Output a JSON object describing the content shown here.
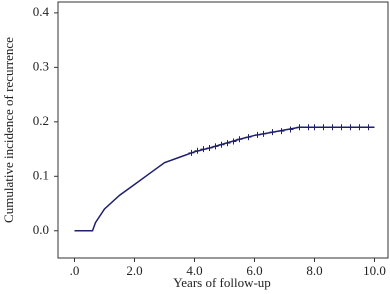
{
  "chart_data": {
    "type": "line",
    "x_label": "Years of follow-up",
    "y_label": "Cumulative incidence of recurrence",
    "color": "#1f1f6e",
    "xlim": [
      -0.55,
      10.45
    ],
    "ylim": [
      -0.05,
      0.42
    ],
    "xticks": [
      {
        "value": 0,
        "label": ".0"
      },
      {
        "value": 2,
        "label": "2.0"
      },
      {
        "value": 4,
        "label": "4.0"
      },
      {
        "value": 6,
        "label": "6.0"
      },
      {
        "value": 8,
        "label": "8.0"
      },
      {
        "value": 10,
        "label": "10.0"
      }
    ],
    "yticks": [
      {
        "value": 0,
        "label": "0.0"
      },
      {
        "value": 0.1,
        "label": "0.1"
      },
      {
        "value": 0.2,
        "label": "0.2"
      },
      {
        "value": 0.3,
        "label": "0.3"
      },
      {
        "value": 0.4,
        "label": "0.4"
      }
    ],
    "x": [
      0,
      0.6,
      0.7,
      1.0,
      1.5,
      2.0,
      2.5,
      3.0,
      3.5,
      4.0,
      4.5,
      5.0,
      5.5,
      6.0,
      6.5,
      7.0,
      7.5,
      10.0
    ],
    "values": [
      0,
      0,
      0.015,
      0.04,
      0.065,
      0.085,
      0.105,
      0.125,
      0.135,
      0.145,
      0.152,
      0.16,
      0.168,
      0.175,
      0.18,
      0.185,
      0.19,
      0.19
    ],
    "censored": {
      "x": [
        3.9,
        4.1,
        4.3,
        4.5,
        4.7,
        4.9,
        5.1,
        5.3,
        5.5,
        5.8,
        6.1,
        6.3,
        6.6,
        6.9,
        7.2,
        7.5,
        7.8,
        8.0,
        8.3,
        8.6,
        8.9,
        9.2,
        9.5,
        9.8
      ],
      "y": [
        0.143,
        0.147,
        0.15,
        0.152,
        0.155,
        0.158,
        0.161,
        0.164,
        0.168,
        0.172,
        0.176,
        0.178,
        0.181,
        0.183,
        0.186,
        0.19,
        0.19,
        0.19,
        0.19,
        0.19,
        0.19,
        0.19,
        0.19,
        0.19
      ]
    }
  }
}
